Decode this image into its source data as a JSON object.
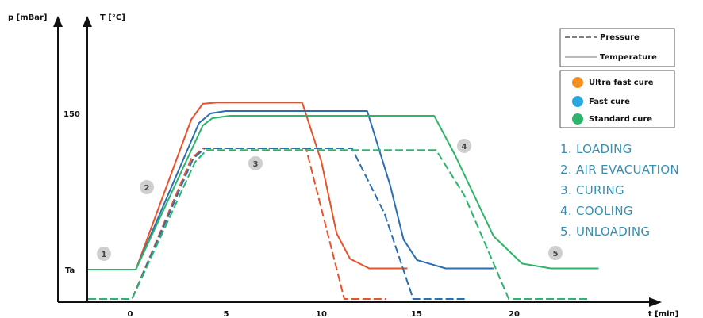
{
  "chart_data": {
    "type": "line",
    "y_axis_pressure_label": "p [mBar]",
    "y_axis_temperature_label": "T [°C]",
    "xlabel": "t [min]",
    "x_ticks": [
      "0",
      "5",
      "10",
      "15",
      "20"
    ],
    "x_range": [
      -2.2,
      26.5
    ],
    "y_ticks": [
      {
        "label": "150",
        "value": 150
      },
      {
        "label": "Ta",
        "value": 20
      }
    ],
    "legend_styles": [
      {
        "name": "Pressure",
        "style": "dashed"
      },
      {
        "name": "Temperature",
        "style": "solid"
      }
    ],
    "legend_cures": [
      {
        "name": "Ultra fast cure",
        "color": "#f39021"
      },
      {
        "name": "Fast cure",
        "color": "#29a8e0"
      },
      {
        "name": "Standard cure",
        "color": "#2eb56c"
      }
    ],
    "series": [
      {
        "name": "Ultra fast cure",
        "kind": "temperature",
        "color": "#e8532a",
        "points": [
          [
            -2.2,
            20
          ],
          [
            0.3,
            20
          ],
          [
            3.2,
            145
          ],
          [
            3.8,
            158
          ],
          [
            4.5,
            159
          ],
          [
            9.0,
            159
          ],
          [
            10.0,
            110
          ],
          [
            10.8,
            50
          ],
          [
            11.5,
            29
          ],
          [
            12.5,
            21
          ],
          [
            14.5,
            21
          ]
        ]
      },
      {
        "name": "Fast cure",
        "kind": "temperature",
        "color": "#2a6fb0",
        "points": [
          [
            -2.2,
            20
          ],
          [
            0.3,
            20
          ],
          [
            3.6,
            142
          ],
          [
            4.2,
            150
          ],
          [
            5.0,
            152
          ],
          [
            12.4,
            152
          ],
          [
            13.6,
            90
          ],
          [
            14.3,
            45
          ],
          [
            15.0,
            28
          ],
          [
            16.5,
            21
          ],
          [
            19.0,
            21
          ]
        ]
      },
      {
        "name": "Standard cure",
        "kind": "temperature",
        "color": "#2eb56c",
        "points": [
          [
            -2.2,
            20
          ],
          [
            0.3,
            20
          ],
          [
            3.8,
            140
          ],
          [
            4.3,
            146
          ],
          [
            5.2,
            148
          ],
          [
            15.9,
            148
          ],
          [
            17.0,
            115
          ],
          [
            19.0,
            48
          ],
          [
            20.5,
            25
          ],
          [
            22,
            21
          ],
          [
            24.5,
            21
          ]
        ]
      },
      {
        "name": "Ultra fast cure",
        "kind": "pressure",
        "color": "#e8532a",
        "points": [
          [
            -2.2,
            0
          ],
          [
            0.1,
            0
          ],
          [
            3.2,
            82
          ],
          [
            3.8,
            88
          ],
          [
            9.2,
            88
          ],
          [
            11.2,
            0
          ],
          [
            13.4,
            0
          ]
        ]
      },
      {
        "name": "Fast cure",
        "kind": "pressure",
        "color": "#2a6fb0",
        "points": [
          [
            -2.2,
            0
          ],
          [
            0.1,
            0
          ],
          [
            3.3,
            82
          ],
          [
            3.9,
            88
          ],
          [
            11.6,
            88
          ],
          [
            13.3,
            50
          ],
          [
            14.8,
            0
          ],
          [
            17.5,
            0
          ]
        ]
      },
      {
        "name": "Standard cure",
        "kind": "pressure",
        "color": "#2eb56c",
        "points": [
          [
            -2.2,
            0
          ],
          [
            0.1,
            0
          ],
          [
            3.4,
            80
          ],
          [
            4.0,
            87
          ],
          [
            16.0,
            87
          ],
          [
            17.5,
            60
          ],
          [
            19.8,
            0
          ],
          [
            24.0,
            0
          ]
        ]
      }
    ],
    "phase_markers": [
      "1",
      "2",
      "3",
      "4",
      "5"
    ],
    "phases": [
      "1. LOADING",
      "2. AIR EVACUATION",
      "3. CURING",
      "4. COOLING",
      "5. UNLOADING"
    ]
  }
}
